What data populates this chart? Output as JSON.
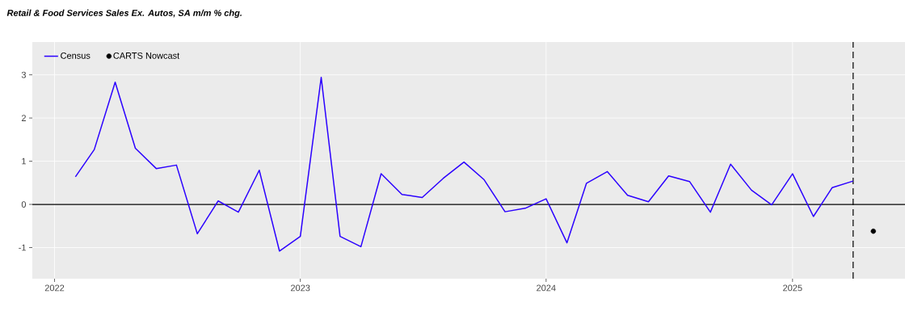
{
  "chart_data": {
    "type": "line",
    "title": "Retail & Food Services Sales Ex. Autos, SA m/m % chg.",
    "x": [
      "2022-02",
      "2022-03",
      "2022-04",
      "2022-05",
      "2022-06",
      "2022-07",
      "2022-08",
      "2022-09",
      "2022-10",
      "2022-11",
      "2022-12",
      "2023-01",
      "2023-02",
      "2023-03",
      "2023-04",
      "2023-05",
      "2023-06",
      "2023-07",
      "2023-08",
      "2023-09",
      "2023-10",
      "2023-11",
      "2023-12",
      "2024-01",
      "2024-02",
      "2024-03",
      "2024-04",
      "2024-05",
      "2024-06",
      "2024-07",
      "2024-08",
      "2024-09",
      "2024-10",
      "2024-11",
      "2024-12",
      "2025-01",
      "2025-02",
      "2025-03",
      "2025-04"
    ],
    "series": [
      {
        "name": "Census",
        "color": "#2b00ff",
        "marker": "none",
        "values": [
          0.64,
          1.27,
          2.83,
          1.3,
          0.83,
          0.91,
          -0.68,
          0.08,
          -0.18,
          0.79,
          -1.08,
          -0.74,
          2.94,
          -0.74,
          -0.98,
          0.71,
          0.23,
          0.16,
          0.6,
          0.98,
          0.57,
          -0.17,
          -0.09,
          0.13,
          -0.89,
          0.49,
          0.76,
          0.21,
          0.06,
          0.66,
          0.53,
          -0.18,
          0.93,
          0.33,
          -0.01,
          0.71,
          -0.28,
          0.39,
          0.54
        ]
      },
      {
        "name": "CARTS Nowcast",
        "type": "scatter",
        "color": "#000000",
        "marker": "circle",
        "x": [
          "2025-05"
        ],
        "values": [
          -0.62
        ]
      }
    ],
    "xlim": [
      "2021-11-29",
      "2025-06-17"
    ],
    "xticks": [
      "2022",
      "2023",
      "2024",
      "2025"
    ],
    "ylim": [
      -1.72,
      3.76
    ],
    "yticks": [
      -1,
      0,
      1,
      2,
      3
    ],
    "grid": true,
    "legend": "top left",
    "line_style": "solid",
    "ref_lines": [
      {
        "axis": "y",
        "value": 0,
        "color": "#000000",
        "line_style": "solid"
      },
      {
        "axis": "x",
        "value": "2025-04",
        "color": "#000000",
        "line_style": "dashed"
      }
    ]
  }
}
